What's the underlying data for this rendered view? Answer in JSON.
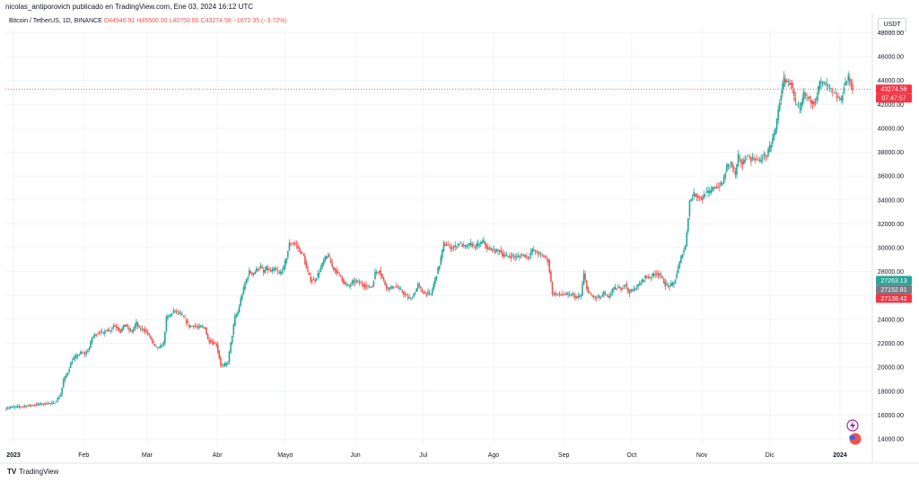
{
  "caption": "nicolas_antiporovich publicado en TradingView.com, Ene 03, 2024 16:12 UTC",
  "symbol": {
    "title": "Bitcoin / TetherUS, 1D, BINANCE",
    "ohlc": "O44946.91 H45500.00 L40750.00 C43274.56 −1672.35 (−3.72%)"
  },
  "currency_button": "USDT",
  "footer_logo": "TradingView",
  "colors": {
    "up": "#26a69a",
    "down": "#ef5350",
    "grid": "#f0f3fa",
    "last_price": "#f23645"
  },
  "chart_data": {
    "type": "candlestick",
    "interval": "1D",
    "ylim": [
      13500,
      48000
    ],
    "y_tick_labels": [
      "14000.00",
      "16000.00",
      "18000.00",
      "20000.00",
      "22000.00",
      "24000.00",
      "26000.00",
      "28000.00",
      "30000.00",
      "32000.00",
      "34000.00",
      "36000.00",
      "38000.00",
      "40000.00",
      "42000.00",
      "44000.00",
      "46000.00",
      "48000.00"
    ],
    "x_tick_labels": [
      "2023",
      "Feb",
      "Mar",
      "Abr",
      "Mayo",
      "Jun",
      "Jul",
      "Ago",
      "Sep",
      "Oct",
      "Nov",
      "Dic",
      "2024"
    ],
    "price_labels": {
      "last_price": "43274.56",
      "countdown": "07:47:57",
      "level_1": "27263.13",
      "level_2": "27152.81",
      "level_3": "27138.42"
    },
    "closes": [
      [
        0,
        16600
      ],
      [
        15,
        16780
      ],
      [
        30,
        17000
      ],
      [
        33,
        16950
      ],
      [
        35,
        17200
      ],
      [
        38,
        17700
      ],
      [
        40,
        18900
      ],
      [
        43,
        19600
      ],
      [
        46,
        20600
      ],
      [
        49,
        20900
      ],
      [
        52,
        21200
      ],
      [
        55,
        21100
      ],
      [
        58,
        21600
      ],
      [
        60,
        22500
      ],
      [
        63,
        22800
      ],
      [
        66,
        23000
      ],
      [
        68,
        22800
      ],
      [
        70,
        23200
      ],
      [
        72,
        23000
      ],
      [
        75,
        23500
      ],
      [
        78,
        23300
      ],
      [
        80,
        23000
      ],
      [
        83,
        23600
      ],
      [
        86,
        23100
      ],
      [
        88,
        23000
      ],
      [
        91,
        23700
      ],
      [
        93,
        23200
      ],
      [
        96,
        23200
      ],
      [
        99,
        22800
      ],
      [
        101,
        22400
      ],
      [
        104,
        21700
      ],
      [
        107,
        21600
      ],
      [
        110,
        22000
      ],
      [
        112,
        24100
      ],
      [
        115,
        24400
      ],
      [
        117,
        24700
      ],
      [
        120,
        24600
      ],
      [
        123,
        24300
      ],
      [
        125,
        24000
      ],
      [
        128,
        23400
      ],
      [
        131,
        23500
      ],
      [
        134,
        23300
      ],
      [
        136,
        23400
      ],
      [
        139,
        23300
      ],
      [
        141,
        22300
      ],
      [
        144,
        22100
      ],
      [
        147,
        21900
      ],
      [
        150,
        20200
      ],
      [
        152,
        20100
      ],
      [
        155,
        20400
      ],
      [
        157,
        22000
      ],
      [
        160,
        24200
      ],
      [
        162,
        24600
      ],
      [
        164,
        25700
      ],
      [
        167,
        27000
      ],
      [
        170,
        28000
      ],
      [
        173,
        27800
      ],
      [
        175,
        28200
      ],
      [
        178,
        28400
      ],
      [
        180,
        27900
      ],
      [
        182,
        28300
      ],
      [
        185,
        28000
      ],
      [
        188,
        28200
      ],
      [
        191,
        27800
      ],
      [
        194,
        28300
      ],
      [
        196,
        29200
      ],
      [
        198,
        30300
      ],
      [
        201,
        30400
      ],
      [
        203,
        30200
      ],
      [
        205,
        29800
      ],
      [
        208,
        29300
      ],
      [
        210,
        28200
      ],
      [
        213,
        27300
      ],
      [
        216,
        27300
      ],
      [
        219,
        28000
      ],
      [
        222,
        28900
      ],
      [
        225,
        29400
      ],
      [
        228,
        28400
      ],
      [
        231,
        28000
      ],
      [
        234,
        27600
      ],
      [
        237,
        26900
      ],
      [
        240,
        26800
      ],
      [
        242,
        27100
      ],
      [
        245,
        27200
      ],
      [
        248,
        27000
      ],
      [
        250,
        26900
      ],
      [
        253,
        26700
      ],
      [
        256,
        26800
      ],
      [
        258,
        27900
      ],
      [
        261,
        28100
      ],
      [
        264,
        27200
      ],
      [
        266,
        26700
      ],
      [
        269,
        26600
      ],
      [
        272,
        26800
      ],
      [
        275,
        26500
      ],
      [
        277,
        26300
      ],
      [
        280,
        25900
      ],
      [
        283,
        25700
      ],
      [
        286,
        26300
      ],
      [
        288,
        26900
      ],
      [
        291,
        26300
      ],
      [
        294,
        26200
      ],
      [
        297,
        26100
      ],
      [
        300,
        27400
      ],
      [
        303,
        28600
      ],
      [
        306,
        30300
      ],
      [
        309,
        30200
      ],
      [
        311,
        30000
      ],
      [
        314,
        30100
      ],
      [
        317,
        30400
      ],
      [
        320,
        30100
      ],
      [
        322,
        30100
      ],
      [
        325,
        30300
      ],
      [
        328,
        30100
      ],
      [
        331,
        30300
      ],
      [
        334,
        30500
      ],
      [
        337,
        29800
      ],
      [
        340,
        29900
      ],
      [
        342,
        29700
      ],
      [
        345,
        29800
      ],
      [
        348,
        29300
      ],
      [
        351,
        29300
      ],
      [
        354,
        29300
      ],
      [
        357,
        29200
      ],
      [
        359,
        29300
      ],
      [
        362,
        29400
      ],
      [
        365,
        29200
      ],
      [
        368,
        29800
      ],
      [
        371,
        29600
      ],
      [
        374,
        29400
      ],
      [
        377,
        29200
      ],
      [
        379,
        28900
      ],
      [
        382,
        26200
      ],
      [
        385,
        26100
      ],
      [
        388,
        26100
      ],
      [
        391,
        26100
      ],
      [
        394,
        26000
      ],
      [
        396,
        26100
      ],
      [
        399,
        25800
      ],
      [
        402,
        26000
      ],
      [
        404,
        27800
      ],
      [
        407,
        26200
      ],
      [
        410,
        25900
      ],
      [
        413,
        25800
      ],
      [
        416,
        25900
      ],
      [
        418,
        26200
      ],
      [
        421,
        25800
      ],
      [
        424,
        26500
      ],
      [
        427,
        26600
      ],
      [
        430,
        26600
      ],
      [
        433,
        27000
      ],
      [
        435,
        26300
      ],
      [
        438,
        26400
      ],
      [
        441,
        26700
      ],
      [
        444,
        27100
      ],
      [
        447,
        27600
      ],
      [
        450,
        27500
      ],
      [
        453,
        27800
      ],
      [
        455,
        27900
      ],
      [
        458,
        27600
      ],
      [
        461,
        26900
      ],
      [
        464,
        26800
      ],
      [
        467,
        27000
      ],
      [
        470,
        28300
      ],
      [
        473,
        29600
      ],
      [
        475,
        30100
      ],
      [
        478,
        33900
      ],
      [
        481,
        34500
      ],
      [
        484,
        34300
      ],
      [
        487,
        34100
      ],
      [
        489,
        34600
      ],
      [
        492,
        34600
      ],
      [
        495,
        35100
      ],
      [
        498,
        35100
      ],
      [
        501,
        35400
      ],
      [
        504,
        36800
      ],
      [
        507,
        37100
      ],
      [
        510,
        36100
      ],
      [
        512,
        37600
      ],
      [
        515,
        37000
      ],
      [
        518,
        37700
      ],
      [
        521,
        37400
      ],
      [
        524,
        37500
      ],
      [
        527,
        37200
      ],
      [
        529,
        37700
      ],
      [
        532,
        37700
      ],
      [
        535,
        38700
      ],
      [
        538,
        39900
      ],
      [
        541,
        42300
      ],
      [
        544,
        44100
      ],
      [
        547,
        43800
      ],
      [
        549,
        43800
      ],
      [
        552,
        42000
      ],
      [
        555,
        41500
      ],
      [
        558,
        42900
      ],
      [
        561,
        42500
      ],
      [
        564,
        42200
      ],
      [
        566,
        42300
      ],
      [
        569,
        43800
      ],
      [
        572,
        43700
      ],
      [
        575,
        43500
      ],
      [
        578,
        43000
      ],
      [
        581,
        42600
      ],
      [
        584,
        42300
      ],
      [
        586,
        43600
      ],
      [
        589,
        44200
      ],
      [
        592,
        43400
      ]
    ]
  }
}
